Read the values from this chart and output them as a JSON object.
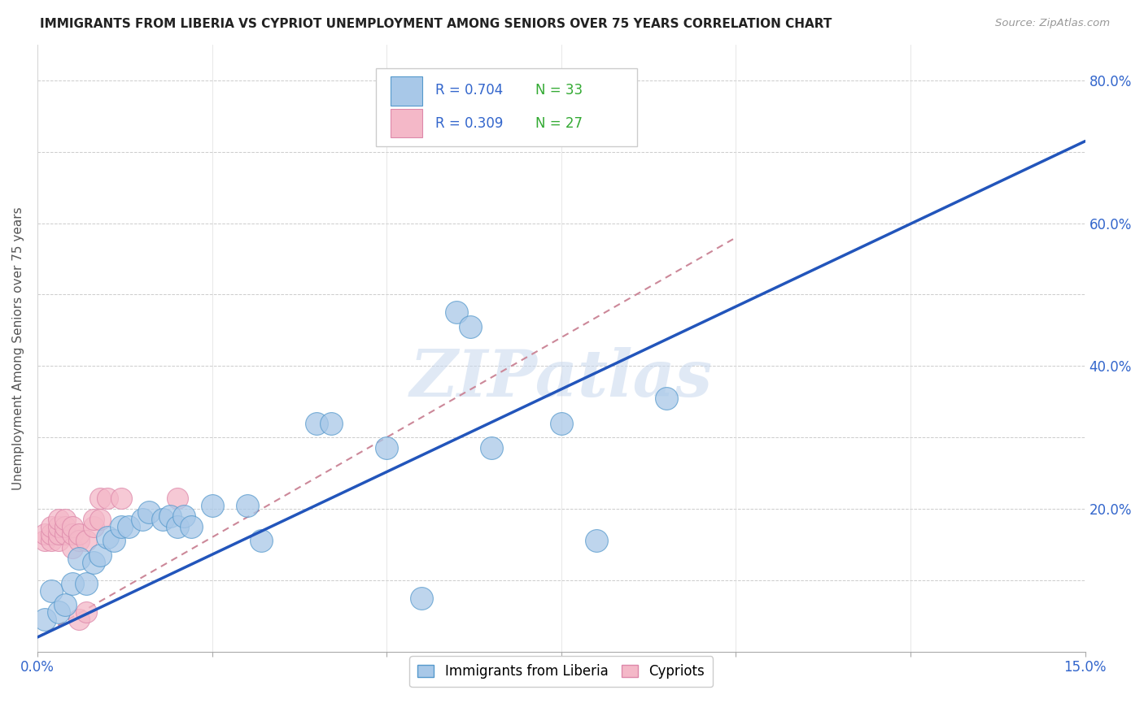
{
  "title": "IMMIGRANTS FROM LIBERIA VS CYPRIOT UNEMPLOYMENT AMONG SENIORS OVER 75 YEARS CORRELATION CHART",
  "source": "Source: ZipAtlas.com",
  "ylabel": "Unemployment Among Seniors over 75 years",
  "xlim": [
    0.0,
    0.15
  ],
  "ylim": [
    0.0,
    0.85
  ],
  "xticks": [
    0.0,
    0.025,
    0.05,
    0.075,
    0.1,
    0.125,
    0.15
  ],
  "xticklabels": [
    "0.0%",
    "",
    "",
    "",
    "",
    "",
    "15.0%"
  ],
  "yticks": [
    0.0,
    0.1,
    0.2,
    0.3,
    0.4,
    0.5,
    0.6,
    0.7,
    0.8
  ],
  "yticklabels_right": [
    "",
    "",
    "20.0%",
    "",
    "40.0%",
    "",
    "60.0%",
    "",
    "80.0%"
  ],
  "watermark": "ZIPatlas",
  "legend_r1": "R = 0.704",
  "legend_n1": "N = 33",
  "legend_r2": "R = 0.309",
  "legend_n2": "N = 27",
  "blue_fill": "#a8c8e8",
  "blue_edge": "#5599cc",
  "pink_fill": "#f4b8c8",
  "pink_edge": "#dd88aa",
  "blue_line_color": "#2255bb",
  "pink_dash_color": "#cc8899",
  "blue_scatter": [
    [
      0.001,
      0.045
    ],
    [
      0.002,
      0.085
    ],
    [
      0.003,
      0.055
    ],
    [
      0.004,
      0.065
    ],
    [
      0.005,
      0.095
    ],
    [
      0.006,
      0.13
    ],
    [
      0.007,
      0.095
    ],
    [
      0.008,
      0.125
    ],
    [
      0.009,
      0.135
    ],
    [
      0.01,
      0.16
    ],
    [
      0.011,
      0.155
    ],
    [
      0.012,
      0.175
    ],
    [
      0.013,
      0.175
    ],
    [
      0.015,
      0.185
    ],
    [
      0.016,
      0.195
    ],
    [
      0.018,
      0.185
    ],
    [
      0.019,
      0.19
    ],
    [
      0.02,
      0.175
    ],
    [
      0.021,
      0.19
    ],
    [
      0.022,
      0.175
    ],
    [
      0.025,
      0.205
    ],
    [
      0.03,
      0.205
    ],
    [
      0.032,
      0.155
    ],
    [
      0.04,
      0.32
    ],
    [
      0.042,
      0.32
    ],
    [
      0.05,
      0.285
    ],
    [
      0.06,
      0.475
    ],
    [
      0.062,
      0.455
    ],
    [
      0.075,
      0.32
    ],
    [
      0.08,
      0.155
    ],
    [
      0.09,
      0.355
    ],
    [
      0.055,
      0.075
    ],
    [
      0.065,
      0.285
    ]
  ],
  "pink_scatter": [
    [
      0.001,
      0.155
    ],
    [
      0.001,
      0.165
    ],
    [
      0.002,
      0.155
    ],
    [
      0.002,
      0.165
    ],
    [
      0.002,
      0.175
    ],
    [
      0.003,
      0.155
    ],
    [
      0.003,
      0.165
    ],
    [
      0.003,
      0.175
    ],
    [
      0.003,
      0.185
    ],
    [
      0.004,
      0.165
    ],
    [
      0.004,
      0.175
    ],
    [
      0.004,
      0.185
    ],
    [
      0.005,
      0.145
    ],
    [
      0.005,
      0.165
    ],
    [
      0.005,
      0.175
    ],
    [
      0.006,
      0.155
    ],
    [
      0.006,
      0.165
    ],
    [
      0.006,
      0.045
    ],
    [
      0.007,
      0.055
    ],
    [
      0.007,
      0.155
    ],
    [
      0.008,
      0.175
    ],
    [
      0.008,
      0.185
    ],
    [
      0.009,
      0.185
    ],
    [
      0.009,
      0.215
    ],
    [
      0.01,
      0.215
    ],
    [
      0.012,
      0.215
    ],
    [
      0.02,
      0.215
    ]
  ],
  "blue_line_pts": [
    [
      0.0,
      0.02
    ],
    [
      0.15,
      0.715
    ]
  ],
  "pink_line_pts": [
    [
      0.0,
      0.02
    ],
    [
      0.1,
      0.58
    ]
  ]
}
